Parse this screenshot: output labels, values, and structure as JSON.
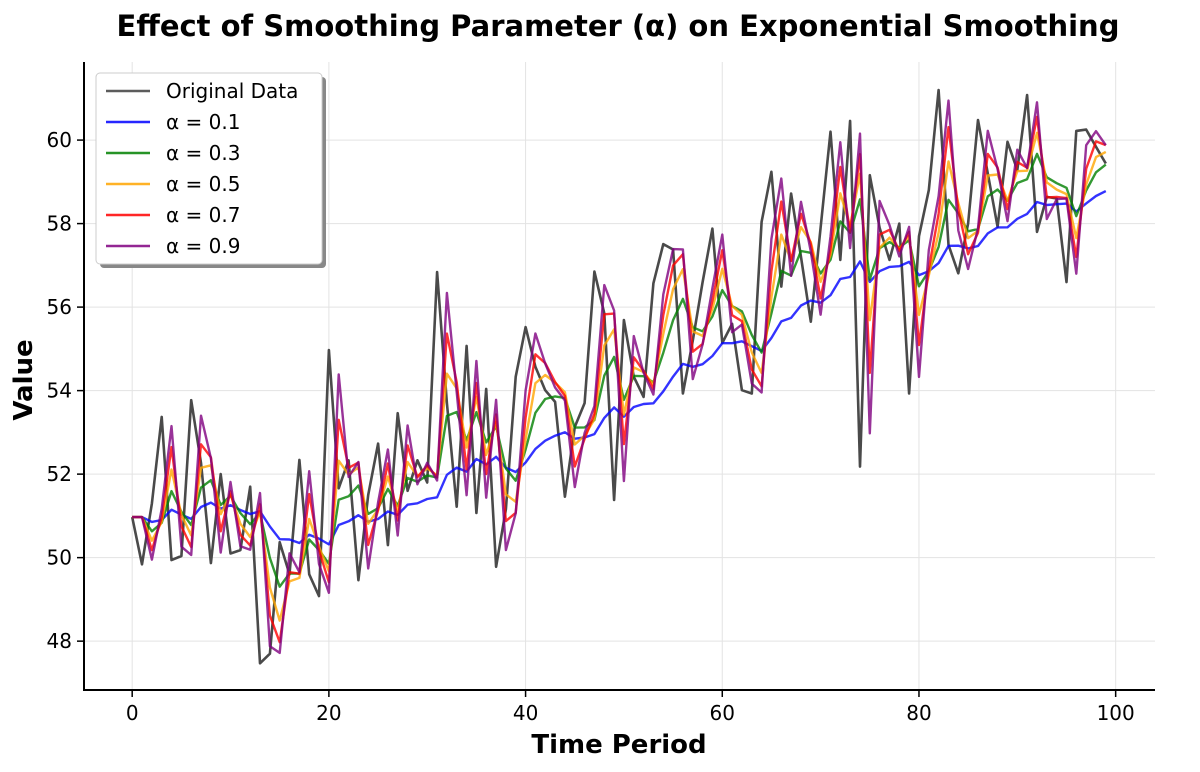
{
  "chart_data": {
    "type": "line",
    "title": "Effect of Smoothing Parameter (α) on Exponential Smoothing",
    "xlabel": "Time Period",
    "ylabel": "Value",
    "xlim": [
      -4.9,
      104
    ],
    "ylim": [
      46.83,
      61.87
    ],
    "xticks": [
      0,
      20,
      40,
      60,
      80,
      100
    ],
    "yticks": [
      48,
      50,
      52,
      54,
      56,
      58,
      60
    ],
    "grid": true,
    "legend_position": "top-left",
    "original": {
      "name": "Original Data",
      "color": "#404040",
      "values": [
        50.97,
        49.84,
        51.3,
        53.37,
        49.94,
        50.04,
        53.77,
        52.27,
        49.87,
        52.0,
        50.1,
        50.18,
        51.7,
        47.47,
        47.7,
        50.37,
        49.6,
        52.34,
        49.6,
        49.08,
        54.97,
        51.66,
        52.33,
        49.46,
        51.5,
        52.73,
        50.3,
        53.46,
        51.6,
        52.33,
        51.8,
        56.84,
        53.7,
        51.22,
        55.07,
        51.07,
        54.04,
        49.78,
        51.16,
        54.33,
        55.52,
        54.57,
        54.01,
        53.73,
        51.46,
        53.13,
        53.7,
        56.85,
        55.85,
        51.38,
        55.69,
        54.33,
        53.85,
        56.57,
        57.51,
        57.38,
        53.93,
        55.2,
        56.6,
        57.88,
        55.14,
        55.6,
        54.01,
        53.93,
        58.04,
        59.24,
        56.49,
        58.72,
        57.2,
        55.65,
        57.9,
        60.2,
        57.13,
        60.46,
        52.18,
        59.16,
        57.9,
        57.13,
        58.0,
        53.93,
        57.7,
        58.8,
        61.2,
        57.49,
        56.81,
        58.0,
        60.48,
        59.2,
        57.92,
        59.96,
        59.28,
        61.08,
        57.8,
        58.64,
        58.6,
        56.6,
        60.22,
        60.25,
        59.84,
        59.44
      ]
    },
    "smoothed_series": [
      {
        "name": "α = 0.1",
        "alpha": 0.1,
        "color": "#0000ff"
      },
      {
        "name": "α = 0.3",
        "alpha": 0.3,
        "color": "#008000"
      },
      {
        "name": "α = 0.5",
        "alpha": 0.5,
        "color": "#ffa500"
      },
      {
        "name": "α = 0.7",
        "alpha": 0.7,
        "color": "#ff0000"
      },
      {
        "name": "α = 0.9",
        "alpha": 0.9,
        "color": "#800080"
      }
    ]
  }
}
